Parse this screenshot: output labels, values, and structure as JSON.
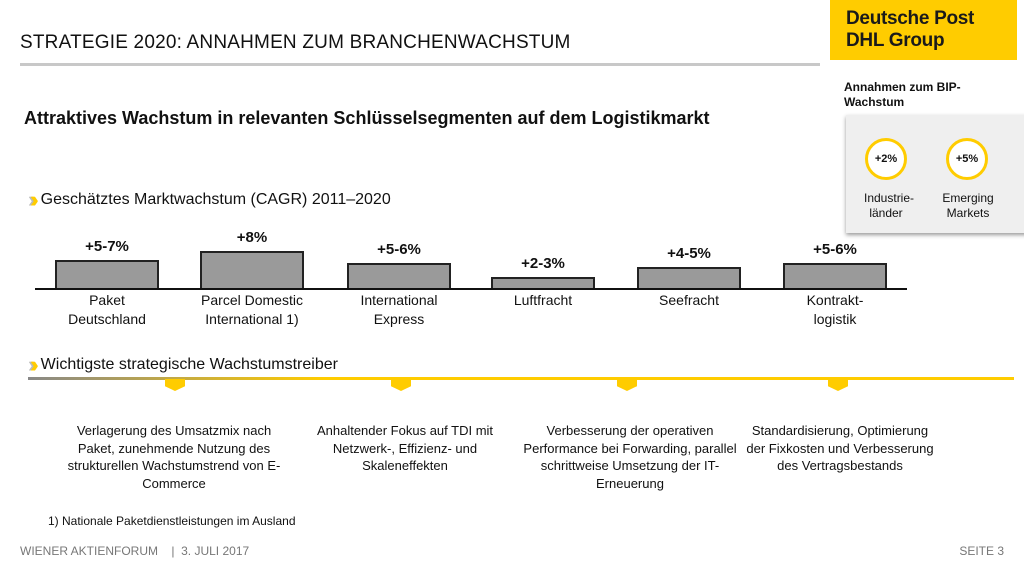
{
  "header": {
    "title": "STRATEGIE  2020: ANNAHMEN ZUM BRANCHENWACHSTUM",
    "logo": "Deutsche Post DHL Group",
    "subtitle": "Attraktives Wachstum in relevanten Schlüsselsegmenten auf dem Logistikmarkt"
  },
  "bip": {
    "title": "Annahmen zum BIP-Wachstum",
    "items": [
      {
        "value": "+2%",
        "label": "Industrie-länder"
      },
      {
        "value": "+5%",
        "label": "Emerging Markets"
      }
    ]
  },
  "chart_data": {
    "type": "bar",
    "title": "Geschätztes Marktwachstum (CAGR) 2011–2020",
    "categories": [
      "Paket Deutschland",
      "Parcel Domestic International 1)",
      "International Express",
      "Luftfracht",
      "Seefracht",
      "Kontrakt-logistik"
    ],
    "data_labels": [
      "+5-7%",
      "+8%",
      "+5-6%",
      "+2-3%",
      "+4-5%",
      "+5-6%"
    ],
    "values": [
      6,
      8,
      5.5,
      2.5,
      4.5,
      5.5
    ],
    "bar_color": "#9a9a9a"
  },
  "drivers": {
    "title": "Wichtigste strategische Wachstumstreiber",
    "items": [
      "Verlagerung des Umsatzmix nach Paket, zunehmende Nutzung des strukturellen Wachstumstrend von E-Commerce",
      "Anhaltender Fokus auf TDI mit Netzwerk-, Effizienz- und Skaleneffekten",
      "Verbesserung der operativen Performance bei Forwarding, parallel schrittweise Umsetzung der IT-Erneuerung",
      "Standardisierung, Optimierung der Fixkosten und Verbesserung des Vertragsbestands"
    ]
  },
  "footnote": "1) Nationale Paketdienstleistungen im Ausland",
  "footer": {
    "left": "WIENER AKTIENFORUM    |  3. JULI 2017",
    "right": "SEITE 3"
  },
  "colors": {
    "accent": "#ffcc00"
  }
}
